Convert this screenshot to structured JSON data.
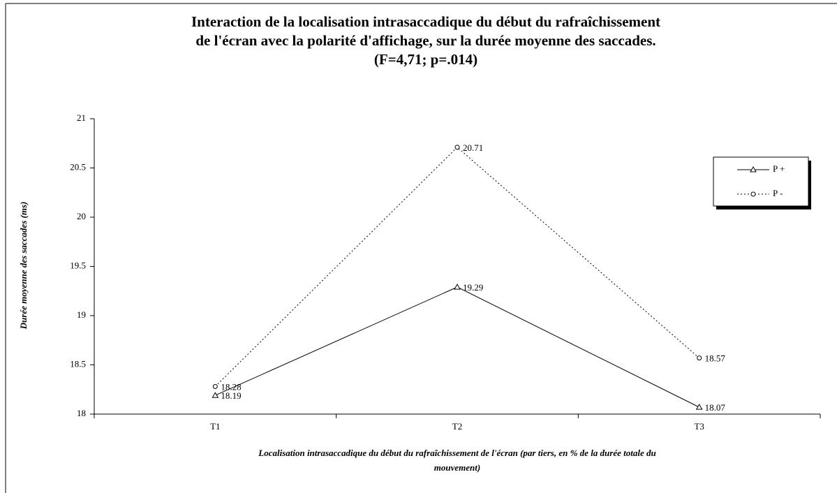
{
  "chart_data": {
    "type": "line",
    "title": [
      "Interaction de la localisation intrasaccadique du début du rafraîchissement",
      "de l'écran avec la polarité d'affichage, sur la durée moyenne des saccades.",
      "(F=4,71; p=.014)"
    ],
    "x_label": [
      "Localisation intrasaccadique du début du rafraîchissement de l'écran (par tiers, en % de la durée totale du",
      "mouvement)"
    ],
    "y_label": "Durée moyenne des saccades (ms)",
    "categories": [
      "T1",
      "T2",
      "T3"
    ],
    "series": [
      {
        "name": "P +",
        "color": "#000000",
        "dash": "solid",
        "marker": "triangle",
        "values": [
          18.19,
          19.29,
          18.07
        ]
      },
      {
        "name": "P -",
        "color": "#000000",
        "dash": "dotted",
        "marker": "circle",
        "values": [
          18.28,
          20.71,
          18.57
        ]
      }
    ],
    "ylim": [
      18,
      21
    ],
    "yticks": [
      18,
      18.5,
      19,
      19.5,
      20,
      20.5,
      21
    ],
    "legend": "right",
    "grid": false
  }
}
